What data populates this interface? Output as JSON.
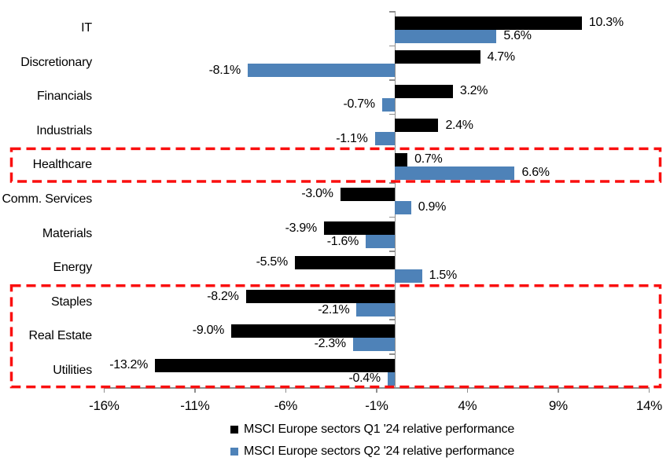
{
  "chart_data": {
    "type": "bar",
    "orientation": "horizontal",
    "title": "",
    "categories": [
      "IT",
      "Discretionary",
      "Financials",
      "Industrials",
      "Healthcare",
      "Comm. Services",
      "Materials",
      "Energy",
      "Staples",
      "Real Estate",
      "Utilities"
    ],
    "series": [
      {
        "name": "MSCI Europe sectors Q1 '24 relative performance",
        "color": "#000000",
        "values": [
          10.3,
          4.7,
          3.2,
          2.4,
          0.7,
          -3.0,
          -3.9,
          -5.5,
          -8.2,
          -9.0,
          -13.2
        ]
      },
      {
        "name": "MSCI Europe sectors Q2 '24 relative performance",
        "color": "#4e82b8",
        "values": [
          5.6,
          -8.1,
          -0.7,
          -1.1,
          6.6,
          0.9,
          -1.6,
          1.5,
          -2.1,
          -2.3,
          -0.4
        ]
      }
    ],
    "value_label_format": "0.0%",
    "x_ticks": [
      -16,
      -11,
      -6,
      -1,
      4,
      9,
      14
    ],
    "x_tick_labels": [
      "-16%",
      "-11%",
      "-6%",
      "-1%",
      "4%",
      "9%",
      "14%"
    ],
    "xlim": [
      -16,
      14
    ],
    "grid": false,
    "legend_position": "bottom",
    "axis_color": "#8f8f8f",
    "annotations": {
      "highlight_color": "#fa0f0f",
      "boxes": [
        {
          "style": "red-dashed",
          "from_category": "Healthcare",
          "to_category": "Healthcare"
        },
        {
          "style": "red-dashed",
          "from_category": "Staples",
          "to_category": "Utilities"
        }
      ]
    }
  },
  "legend": {
    "items": [
      {
        "label": "MSCI Europe sectors Q1 '24 relative performance",
        "color": "#000000"
      },
      {
        "label": "MSCI Europe sectors Q2 '24 relative performance",
        "color": "#4e82b8"
      }
    ]
  }
}
